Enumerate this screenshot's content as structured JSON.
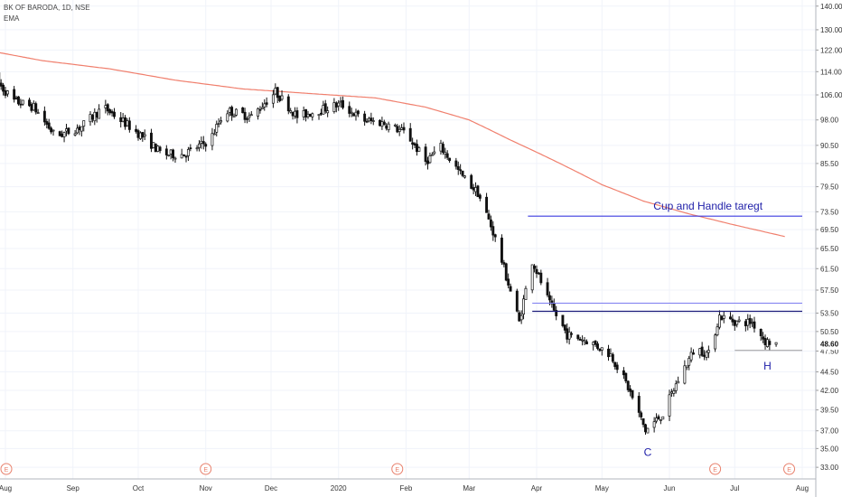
{
  "header": {
    "symbol_line": "BK OF BARODA, 1D, NSE",
    "indicator": "EMA"
  },
  "chart_data": {
    "type": "candlestick",
    "symbol": "BK OF BARODA",
    "interval": "1D",
    "exchange": "NSE",
    "y_scale": "log",
    "ylim": [
      32.0,
      141.5
    ],
    "y_ticks": [
      140.0,
      130.0,
      122.0,
      114.0,
      106.0,
      98.0,
      90.5,
      85.5,
      79.5,
      73.5,
      69.5,
      65.5,
      61.5,
      57.5,
      53.5,
      50.5,
      47.5,
      44.5,
      42.0,
      39.5,
      37.0,
      35.0,
      33.0
    ],
    "y_tick_labels": [
      "140.00",
      "130.00",
      "122.00",
      "114.00",
      "106.00",
      "98.00",
      "90.50",
      "85.50",
      "79.50",
      "73.50",
      "69.50",
      "65.50",
      "61.50",
      "57.50",
      "53.50",
      "50.50",
      "47.50",
      "44.50",
      "42.00",
      "39.50",
      "37.00",
      "35.00",
      "33.00"
    ],
    "last_price": "48.60",
    "x_axis_labels": [
      "Aug",
      "Sep",
      "Oct",
      "Nov",
      "Dec",
      "2020",
      "Feb",
      "Mar",
      "Apr",
      "May",
      "Jun",
      "Jul",
      "Aug"
    ],
    "x_axis_label_days": [
      0,
      31,
      61,
      92,
      122,
      153,
      184,
      213,
      244,
      274,
      305,
      335,
      366
    ],
    "date_domain": [
      "2019-08-01",
      "2020-08-01"
    ],
    "price_path": [
      [
        "2019-07-26",
        112
      ],
      [
        "2019-08-05",
        104
      ],
      [
        "2019-08-14",
        102
      ],
      [
        "2019-08-24",
        93
      ],
      [
        "2019-09-05",
        96
      ],
      [
        "2019-09-15",
        102
      ],
      [
        "2019-09-25",
        97
      ],
      [
        "2019-10-05",
        92
      ],
      [
        "2019-10-12",
        88
      ],
      [
        "2019-10-22",
        88
      ],
      [
        "2019-11-03",
        92
      ],
      [
        "2019-11-10",
        101
      ],
      [
        "2019-11-22",
        99
      ],
      [
        "2019-12-03",
        107
      ],
      [
        "2019-12-13",
        99
      ],
      [
        "2019-12-23",
        101
      ],
      [
        "2020-01-02",
        103
      ],
      [
        "2020-01-12",
        98
      ],
      [
        "2020-01-22",
        97
      ],
      [
        "2020-02-01",
        94
      ],
      [
        "2020-02-10",
        86
      ],
      [
        "2020-02-17",
        90
      ],
      [
        "2020-02-27",
        82
      ],
      [
        "2020-03-05",
        78
      ],
      [
        "2020-03-12",
        69
      ],
      [
        "2020-03-18",
        60
      ],
      [
        "2020-03-24",
        52
      ],
      [
        "2020-03-30",
        63
      ],
      [
        "2020-04-07",
        55
      ],
      [
        "2020-04-15",
        50
      ],
      [
        "2020-04-25",
        49
      ],
      [
        "2020-05-05",
        47
      ],
      [
        "2020-05-12",
        43
      ],
      [
        "2020-05-21",
        37
      ],
      [
        "2020-05-29",
        39
      ],
      [
        "2020-06-06",
        44
      ],
      [
        "2020-06-13",
        48
      ],
      [
        "2020-06-19",
        47
      ],
      [
        "2020-06-24",
        53
      ],
      [
        "2020-07-02",
        52
      ],
      [
        "2020-07-09",
        52
      ],
      [
        "2020-07-15",
        49
      ],
      [
        "2020-07-20",
        48.6
      ]
    ],
    "ema_series": [
      [
        "2019-07-26",
        121.5
      ],
      [
        "2019-08-18",
        118
      ],
      [
        "2019-09-18",
        115
      ],
      [
        "2019-10-18",
        111
      ],
      [
        "2019-11-18",
        108
      ],
      [
        "2019-12-18",
        106.5
      ],
      [
        "2020-01-18",
        105
      ],
      [
        "2020-02-10",
        102
      ],
      [
        "2020-03-01",
        98
      ],
      [
        "2020-03-20",
        92
      ],
      [
        "2020-04-10",
        86
      ],
      [
        "2020-05-01",
        80
      ],
      [
        "2020-05-20",
        76
      ],
      [
        "2020-06-10",
        73
      ],
      [
        "2020-07-01",
        70.5
      ],
      [
        "2020-07-24",
        68
      ]
    ],
    "annotations": {
      "cup_target": {
        "label": "Cup and Handle taregt",
        "price": 72.5,
        "from": "2020-03-28",
        "to": "2020-08-01"
      },
      "neckline_upper": {
        "price": 55.2,
        "from": "2020-03-30",
        "to": "2020-08-01"
      },
      "neckline": {
        "price": 53.8,
        "from": "2020-03-30",
        "to": "2020-08-01"
      },
      "handle_support": {
        "price": 47.6,
        "from": "2020-07-01",
        "to": "2020-08-01"
      },
      "cup_label": {
        "text": "C",
        "date": "2020-05-22",
        "price": 34.2
      },
      "handle_label": {
        "text": "H",
        "date": "2020-07-16",
        "price": 44.8
      },
      "event_markers": {
        "symbol": "E",
        "dates": [
          "2019-07-28",
          "2019-11-01",
          "2020-01-28",
          "2020-06-22",
          "2020-07-26"
        ]
      }
    },
    "colors": {
      "ema": "#f07f6d",
      "target_line": "#3c3ce0",
      "neckline": "#1b1b7a",
      "neckline_upper": "#7d7df0",
      "handle_line": "#9c9c9c",
      "label": "#1e1ea8",
      "event_marker": "#e8806c",
      "candle": "#111111",
      "grid": "#f0f3fa"
    }
  }
}
